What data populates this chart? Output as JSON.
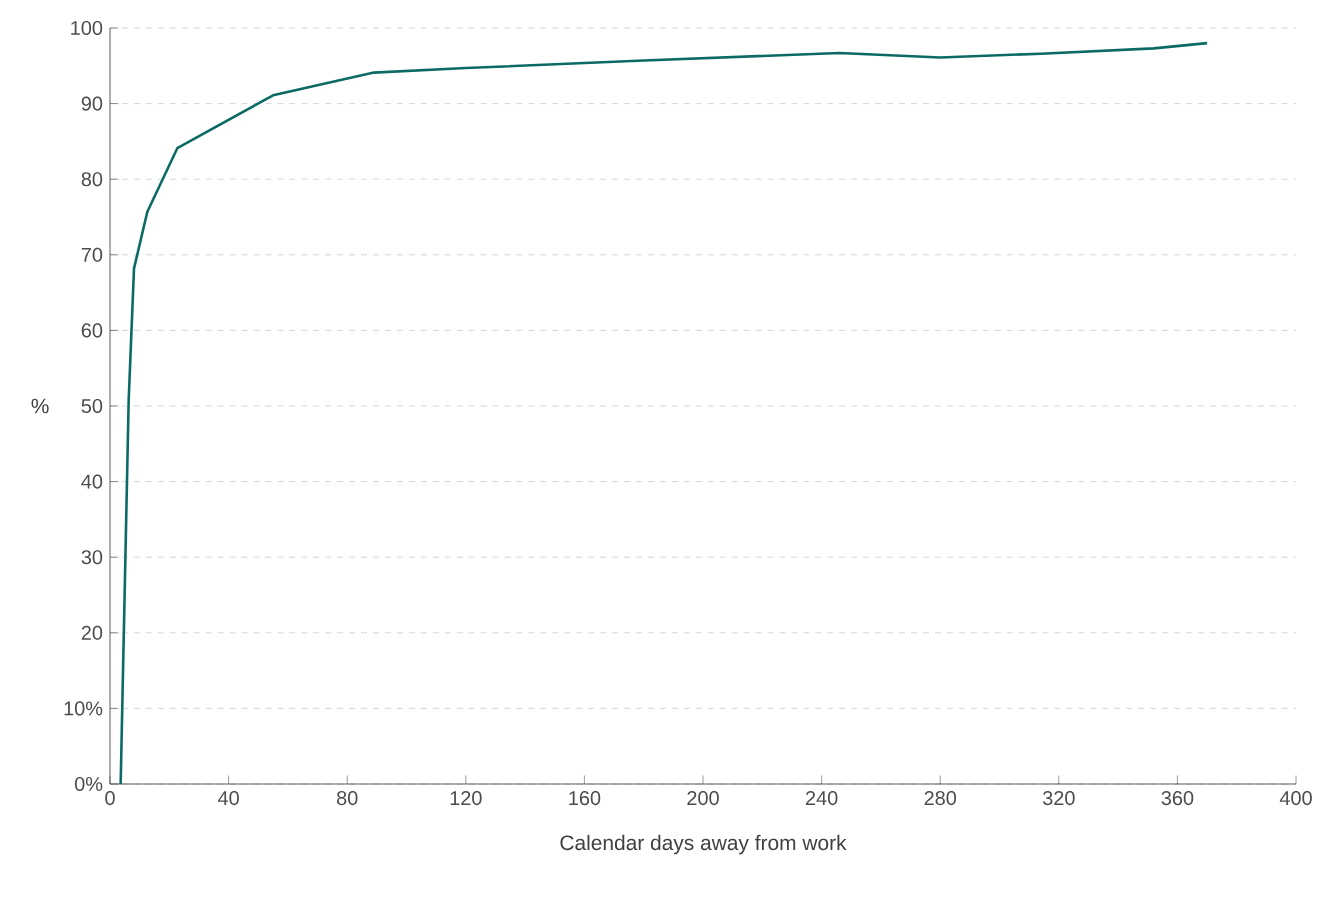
{
  "chart_data": {
    "type": "line",
    "xlabel": "Calendar days away from work",
    "ylabel": "%",
    "x": [
      3.6,
      6.3,
      8.1,
      12.6,
      22.7,
      55,
      89,
      120,
      180,
      246,
      280,
      314,
      352,
      370
    ],
    "values": [
      0,
      50.8,
      68.2,
      75.7,
      84.1,
      91.1,
      94.1,
      94.7,
      95.7,
      96.7,
      96.1,
      96.6,
      97.3,
      98.0
    ],
    "color": "#0b6b64",
    "xlim": [
      0,
      400
    ],
    "xticks": [
      0,
      40,
      80,
      120,
      160,
      200,
      240,
      280,
      320,
      360,
      400
    ],
    "ylim": [
      0,
      100
    ],
    "yticks": [
      {
        "value": 0,
        "label": "0%"
      },
      {
        "value": 10,
        "label": "10%"
      },
      20,
      30,
      40,
      50,
      60,
      70,
      80,
      90,
      100
    ],
    "grid": "y",
    "marker": "none",
    "line_style": "solid"
  }
}
